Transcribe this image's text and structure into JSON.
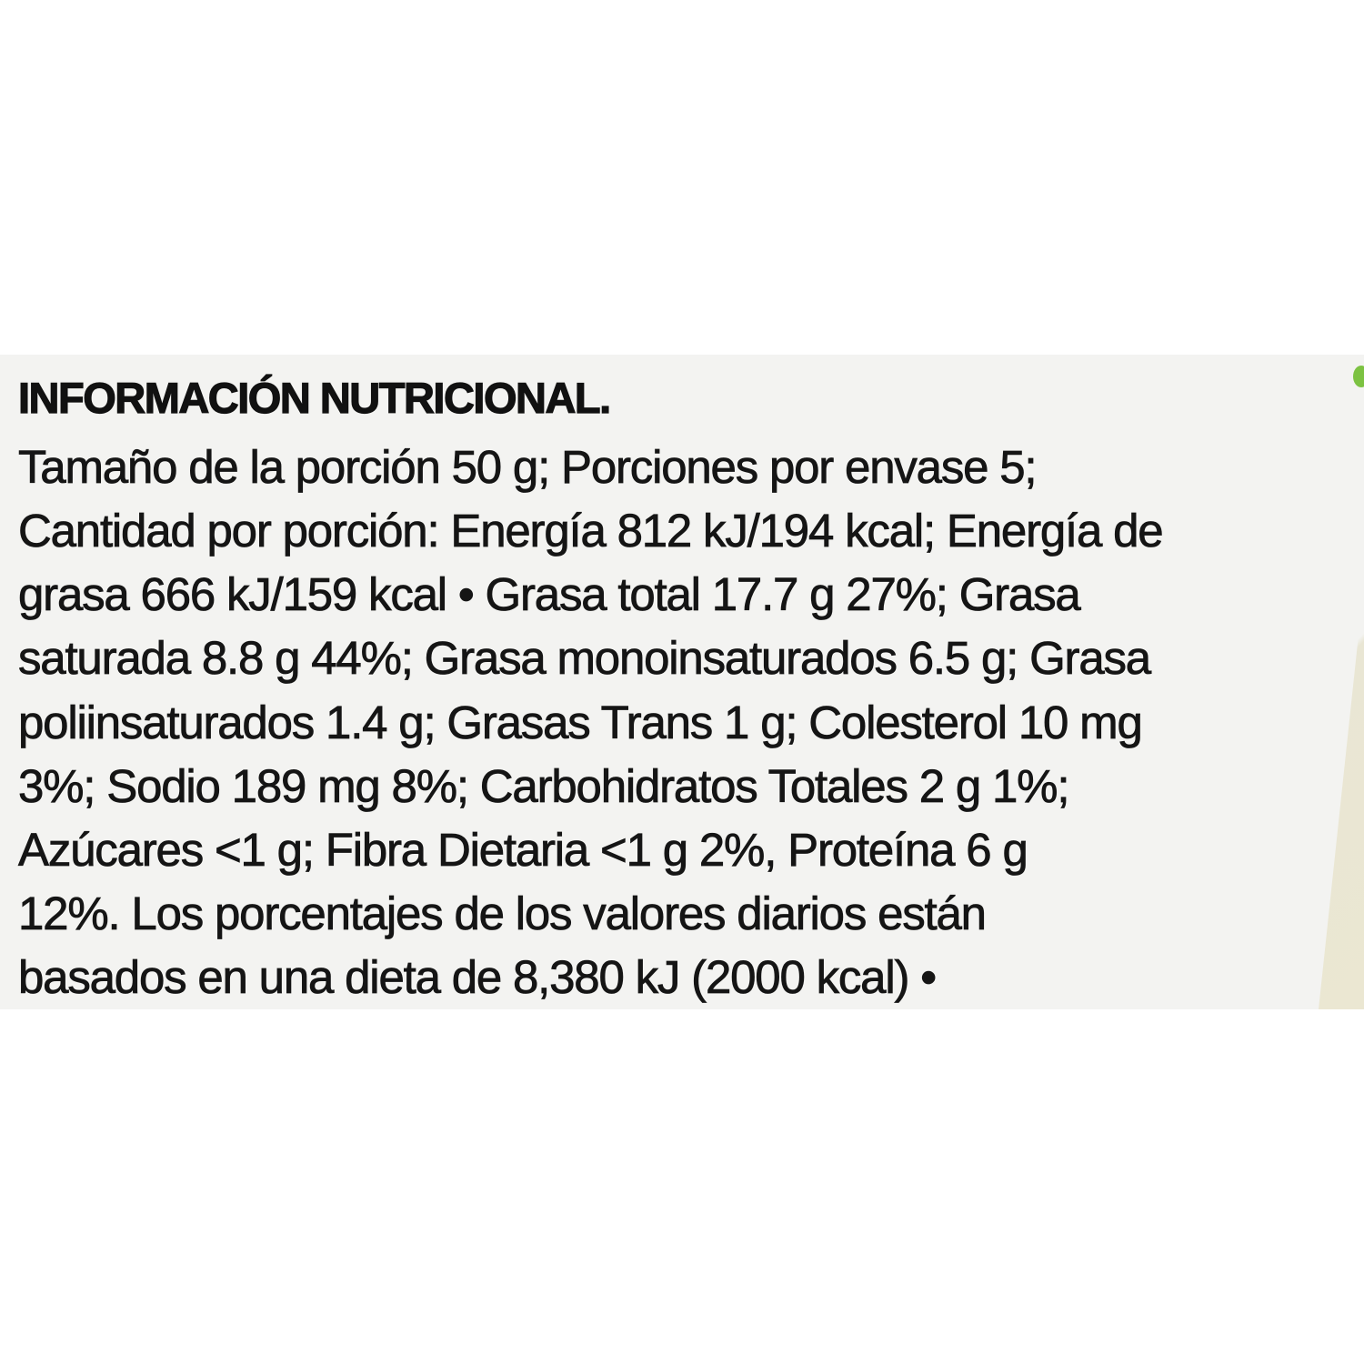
{
  "title": "INFORMACIÓN NUTRICIONAL.",
  "lines": [
    "Tamaño de la porción 50 g; Porciones por envase 5;",
    "Cantidad por porción: Energía 812 kJ/194 kcal; Energía de",
    "grasa 666 kJ/159 kcal • Grasa total 17.7 g 27%; Grasa",
    "saturada 8.8 g 44%; Grasa monoinsaturados 6.5 g; Grasa",
    "poliinsaturados 1.4 g; Grasas Trans 1 g; Colesterol 10 mg",
    "3%; Sodio 189 mg 8%; Carbohidratos Totales 2 g 1%;",
    "Azúcares <1 g; Fibra Dietaria <1 g 2%, Proteína 6 g",
    "12%. Los porcentajes de los valores diarios están",
    "basados en una dieta de 8,380 kJ (2000 kcal) •"
  ],
  "colors": {
    "label_background": "#f3f3f1",
    "text": "#151515",
    "leaf_accent": "#7cc242"
  }
}
